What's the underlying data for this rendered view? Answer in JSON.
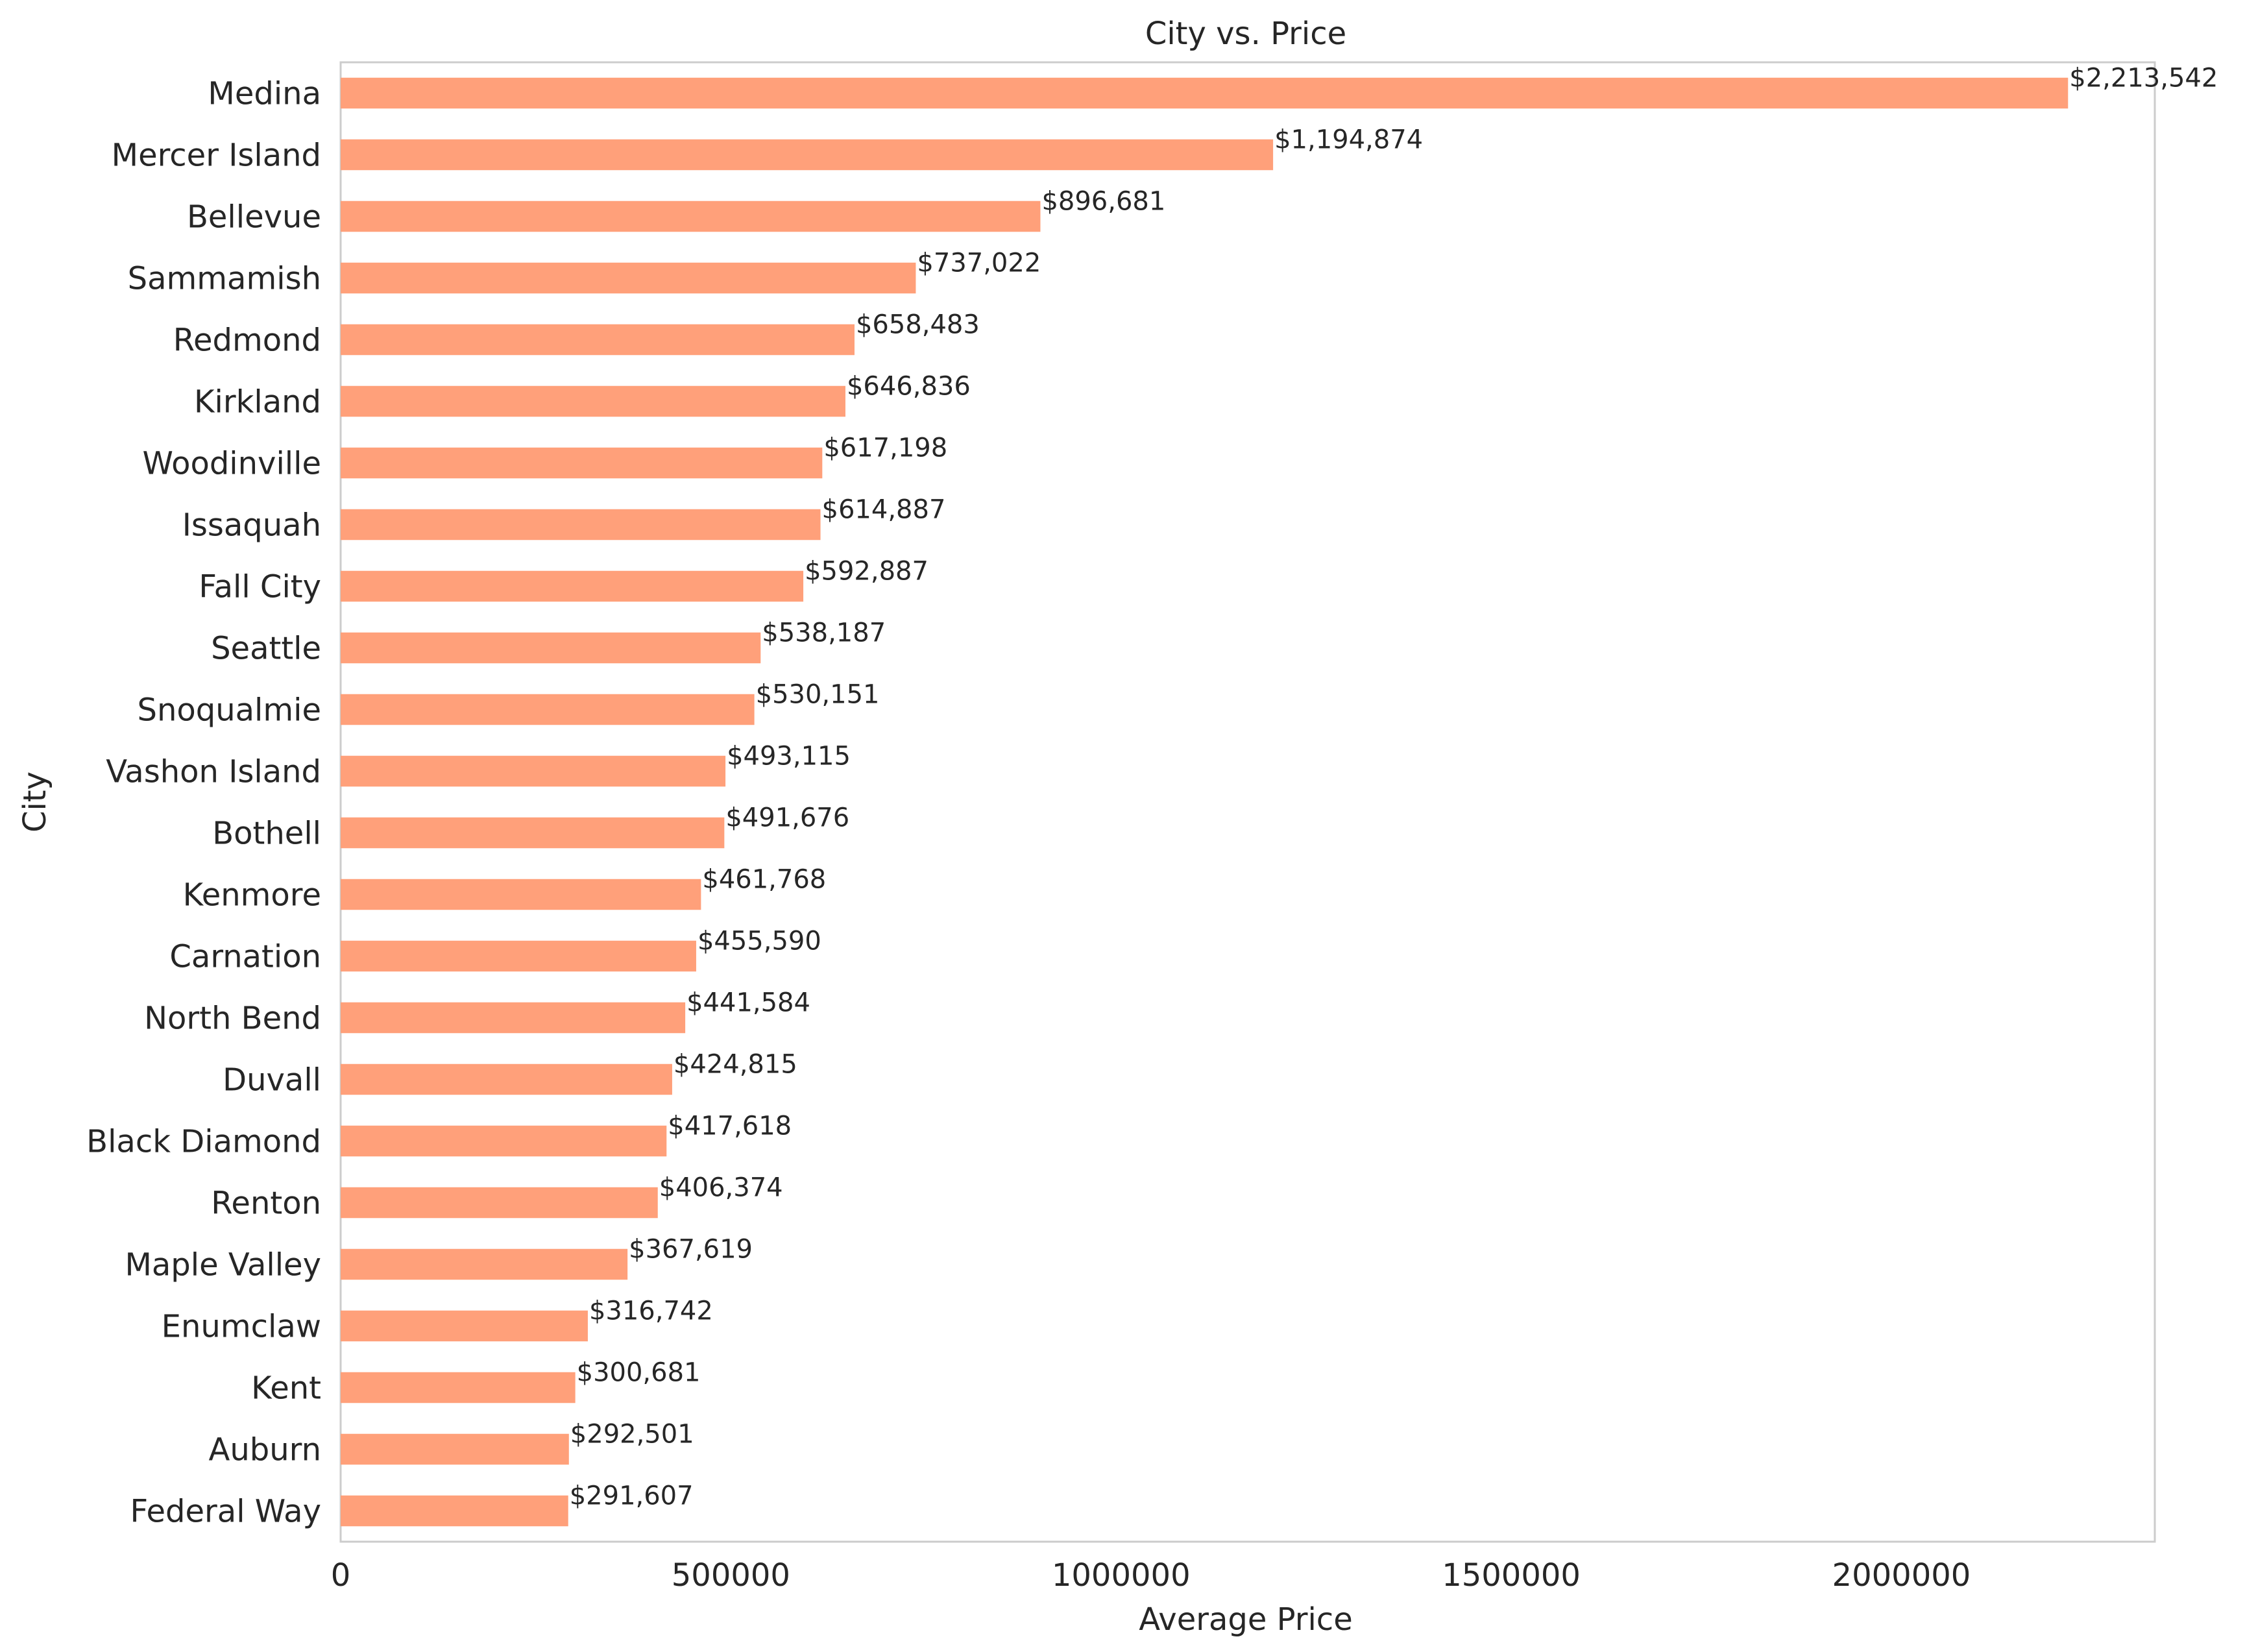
{
  "chart_data": {
    "type": "bar",
    "orientation": "horizontal",
    "title": "City vs. Price",
    "xlabel": "Average Price",
    "ylabel": "City",
    "xlim": [
      0,
      2324719
    ],
    "xticks": [
      0,
      500000,
      1000000,
      1500000,
      2000000
    ],
    "xtick_labels": [
      "0",
      "500000",
      "1000000",
      "1500000",
      "2000000"
    ],
    "grid": false,
    "bar_color": "#ffa07a",
    "categories": [
      "Medina",
      "Mercer Island",
      "Bellevue",
      "Sammamish",
      "Redmond",
      "Kirkland",
      "Woodinville",
      "Issaquah",
      "Fall City",
      "Seattle",
      "Snoqualmie",
      "Vashon Island",
      "Bothell",
      "Kenmore",
      "Carnation",
      "North Bend",
      "Duvall",
      "Black Diamond",
      "Renton",
      "Maple Valley",
      "Enumclaw",
      "Kent",
      "Auburn",
      "Federal Way"
    ],
    "values": [
      2213542,
      1194874,
      896681,
      737022,
      658483,
      646836,
      617198,
      614887,
      592887,
      538187,
      530151,
      493115,
      491676,
      461768,
      455590,
      441584,
      424815,
      417618,
      406374,
      367619,
      316742,
      300681,
      292501,
      291607
    ],
    "data_labels": [
      "$2,213,542",
      "$1,194,874",
      "$896,681",
      "$737,022",
      "$658,483",
      "$646,836",
      "$617,198",
      "$614,887",
      "$592,887",
      "$538,187",
      "$530,151",
      "$493,115",
      "$491,676",
      "$461,768",
      "$455,590",
      "$441,584",
      "$424,815",
      "$417,618",
      "$406,374",
      "$367,619",
      "$316,742",
      "$300,681",
      "$292,501",
      "$291,607"
    ]
  }
}
